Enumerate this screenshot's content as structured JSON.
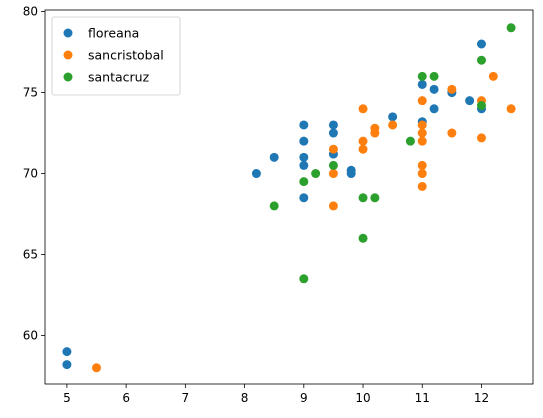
{
  "chart_data": {
    "type": "scatter",
    "title": "",
    "xlabel": "",
    "ylabel": "",
    "xlim": [
      4.63,
      12.87
    ],
    "ylim": [
      57.0,
      80.1
    ],
    "xticks": [
      5,
      6,
      7,
      8,
      9,
      10,
      11,
      12
    ],
    "yticks": [
      60,
      65,
      70,
      75,
      80
    ],
    "xtick_labels": [
      "5",
      "6",
      "7",
      "8",
      "9",
      "10",
      "11",
      "12"
    ],
    "ytick_labels": [
      "60",
      "65",
      "70",
      "75",
      "80"
    ],
    "grid": false,
    "legend_position": "top-left",
    "series": [
      {
        "name": "floreana",
        "color": "#1f77b4",
        "points": [
          [
            5,
            59.0
          ],
          [
            5,
            58.2
          ],
          [
            8.2,
            70.0
          ],
          [
            8.5,
            71.0
          ],
          [
            9,
            73.0
          ],
          [
            9,
            72.0
          ],
          [
            9,
            71.0
          ],
          [
            9,
            70.5
          ],
          [
            9,
            68.5
          ],
          [
            9.5,
            73.0
          ],
          [
            9.5,
            72.5
          ],
          [
            9.5,
            71.2
          ],
          [
            9.8,
            70.2
          ],
          [
            9.8,
            70.0
          ],
          [
            10.5,
            73.5
          ],
          [
            11,
            75.5
          ],
          [
            11,
            73.2
          ],
          [
            11.2,
            75.2
          ],
          [
            11.2,
            74.0
          ],
          [
            11.5,
            75.0
          ],
          [
            11.8,
            74.5
          ],
          [
            12,
            78.0
          ],
          [
            12,
            74.0
          ]
        ]
      },
      {
        "name": "sancristobal",
        "color": "#ff7f0e",
        "points": [
          [
            5.5,
            58.0
          ],
          [
            9.5,
            71.5
          ],
          [
            9.5,
            70.0
          ],
          [
            9.5,
            68.0
          ],
          [
            10,
            74.0
          ],
          [
            10,
            72.0
          ],
          [
            10,
            71.5
          ],
          [
            10.2,
            72.8
          ],
          [
            10.2,
            72.5
          ],
          [
            10.5,
            73.0
          ],
          [
            11,
            74.5
          ],
          [
            11,
            73.0
          ],
          [
            11,
            72.5
          ],
          [
            11,
            72.0
          ],
          [
            11,
            70.5
          ],
          [
            11,
            70.0
          ],
          [
            11,
            69.2
          ],
          [
            11.5,
            75.2
          ],
          [
            11.5,
            72.5
          ],
          [
            12,
            74.5
          ],
          [
            12,
            72.2
          ],
          [
            12.2,
            76.0
          ],
          [
            12.5,
            74.0
          ]
        ]
      },
      {
        "name": "santacruz",
        "color": "#2ca02c",
        "points": [
          [
            8.5,
            68.0
          ],
          [
            9,
            69.5
          ],
          [
            9,
            63.5
          ],
          [
            9.2,
            70.0
          ],
          [
            9.5,
            70.5
          ],
          [
            10,
            68.5
          ],
          [
            10,
            66.0
          ],
          [
            10.2,
            68.5
          ],
          [
            10.8,
            72.0
          ],
          [
            11,
            76.0
          ],
          [
            11.2,
            76.0
          ],
          [
            12,
            77.0
          ],
          [
            12,
            74.2
          ],
          [
            12.5,
            79.0
          ]
        ]
      }
    ]
  }
}
